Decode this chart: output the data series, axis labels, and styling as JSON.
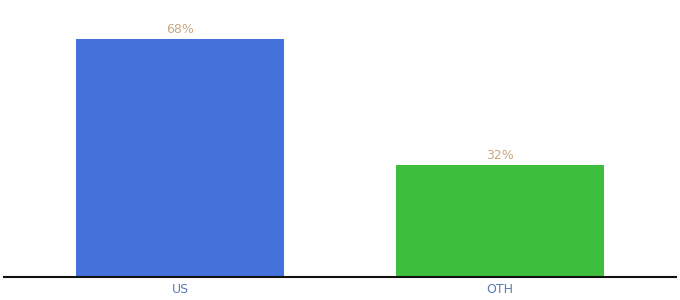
{
  "categories": [
    "US",
    "OTH"
  ],
  "values": [
    68,
    32
  ],
  "bar_colors": [
    "#4472db",
    "#3dbf3d"
  ],
  "label_color": "#c8a882",
  "label_fontsize": 9,
  "tick_fontsize": 9,
  "tick_color": "#5a7ab5",
  "background_color": "#ffffff",
  "ylim": [
    0,
    78
  ],
  "bar_width": 0.65,
  "xlim": [
    -0.55,
    1.55
  ]
}
